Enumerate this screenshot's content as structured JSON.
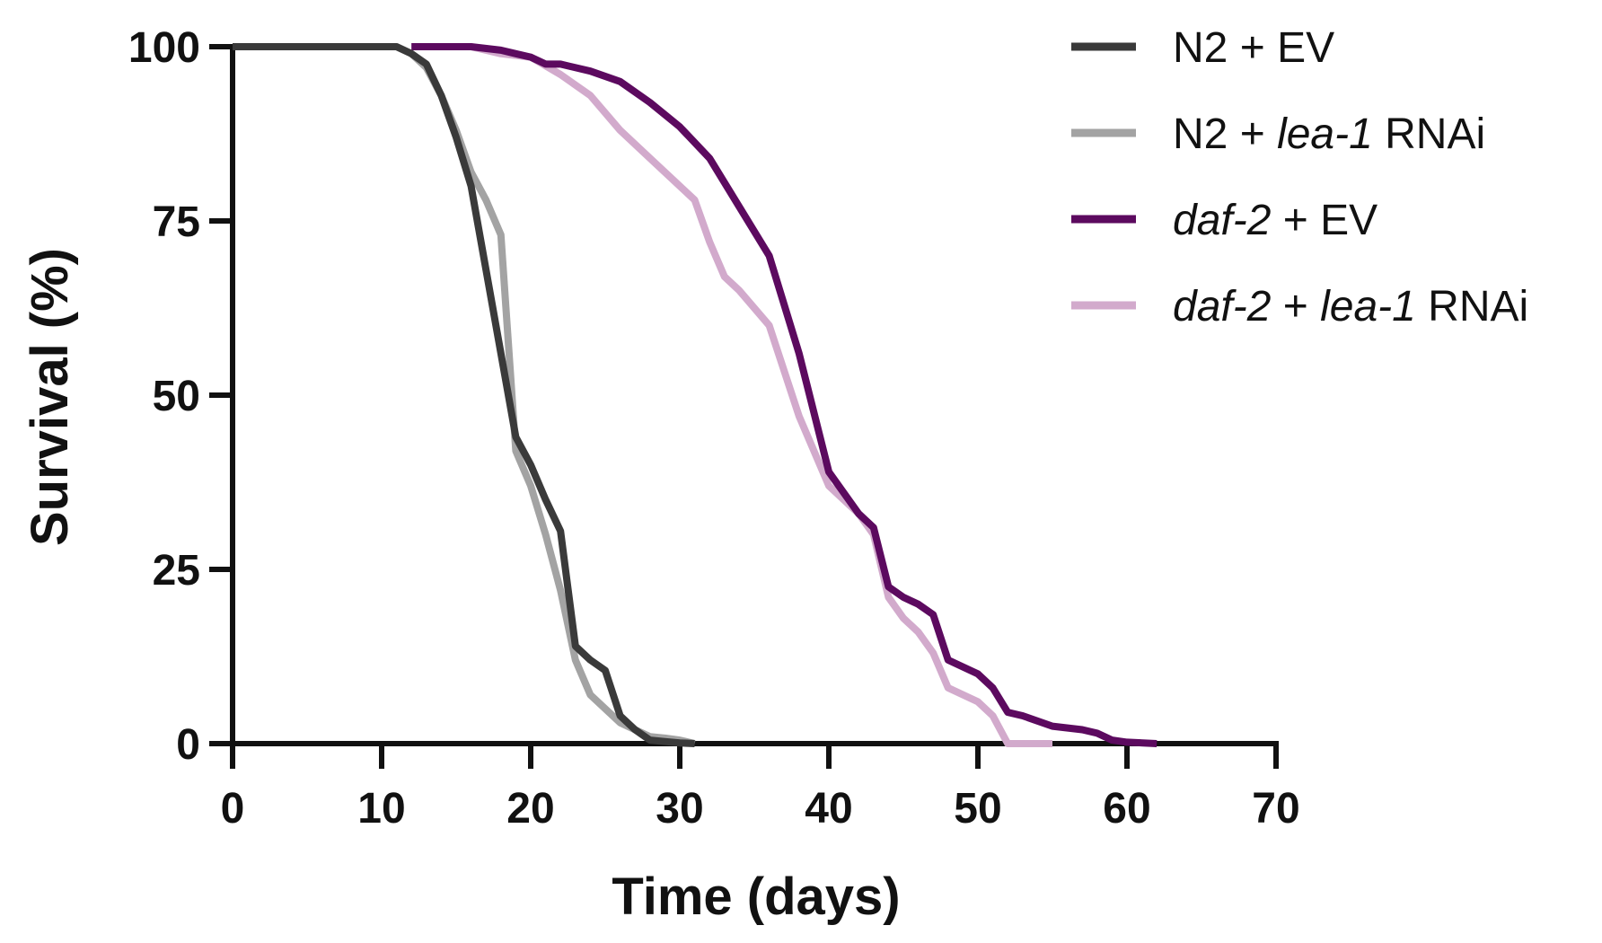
{
  "chart_data": {
    "type": "line",
    "title": "",
    "xlabel": "Time (days)",
    "ylabel": "Survival (%)",
    "xlim": [
      0,
      70
    ],
    "ylim": [
      0,
      100
    ],
    "x_ticks": [
      "0",
      "10",
      "20",
      "30",
      "40",
      "50",
      "60",
      "70"
    ],
    "y_ticks": [
      "0",
      "25",
      "50",
      "75",
      "100"
    ],
    "grid": false,
    "legend_position": "top-right",
    "series": [
      {
        "name": "N2 + EV",
        "legend_parts": [
          {
            "text": "N2 + EV",
            "italic": false
          }
        ],
        "color": "#3a3a3a",
        "points": [
          [
            0,
            100
          ],
          [
            11,
            100
          ],
          [
            12,
            99
          ],
          [
            13,
            97.5
          ],
          [
            14,
            93
          ],
          [
            15,
            87
          ],
          [
            16,
            80
          ],
          [
            17,
            68
          ],
          [
            18,
            56
          ],
          [
            19,
            44
          ],
          [
            20,
            40
          ],
          [
            21,
            35
          ],
          [
            22,
            30.5
          ],
          [
            23,
            14
          ],
          [
            24,
            12
          ],
          [
            25,
            10.5
          ],
          [
            26,
            4
          ],
          [
            27,
            2
          ],
          [
            28,
            0.5
          ],
          [
            29,
            0.3
          ],
          [
            30,
            0.1
          ],
          [
            31,
            0
          ]
        ]
      },
      {
        "name": "N2 + lea-1 RNAi",
        "legend_parts": [
          {
            "text": "N2 + ",
            "italic": false
          },
          {
            "text": "lea-1",
            "italic": true
          },
          {
            "text": " RNAi",
            "italic": false
          }
        ],
        "color": "#a3a3a3",
        "points": [
          [
            0,
            100
          ],
          [
            11,
            100
          ],
          [
            12,
            99
          ],
          [
            13,
            97
          ],
          [
            14,
            93
          ],
          [
            15,
            88
          ],
          [
            16,
            82
          ],
          [
            17,
            78
          ],
          [
            18,
            73
          ],
          [
            19,
            42
          ],
          [
            20,
            37
          ],
          [
            21,
            30
          ],
          [
            22,
            22
          ],
          [
            23,
            12
          ],
          [
            24,
            7
          ],
          [
            25,
            5
          ],
          [
            26,
            3
          ],
          [
            27,
            2
          ],
          [
            28,
            1
          ],
          [
            29,
            0.8
          ],
          [
            30,
            0.5
          ],
          [
            31,
            0
          ]
        ]
      },
      {
        "name": "daf-2 + EV",
        "legend_parts": [
          {
            "text": "daf-2",
            "italic": true
          },
          {
            "text": " + EV",
            "italic": false
          }
        ],
        "color": "#5c0a5f",
        "points": [
          [
            12,
            100
          ],
          [
            16,
            100
          ],
          [
            18,
            99.5
          ],
          [
            19,
            99
          ],
          [
            20,
            98.5
          ],
          [
            21,
            97.5
          ],
          [
            22,
            97.5
          ],
          [
            24,
            96.5
          ],
          [
            26,
            95
          ],
          [
            28,
            92
          ],
          [
            30,
            88.5
          ],
          [
            32,
            84
          ],
          [
            34,
            77
          ],
          [
            36,
            70
          ],
          [
            38,
            56
          ],
          [
            40,
            39
          ],
          [
            42,
            33
          ],
          [
            43,
            31
          ],
          [
            44,
            22.5
          ],
          [
            45,
            21
          ],
          [
            46,
            20
          ],
          [
            47,
            18.5
          ],
          [
            48,
            12
          ],
          [
            49,
            11
          ],
          [
            50,
            10
          ],
          [
            51,
            8
          ],
          [
            52,
            4.5
          ],
          [
            53,
            4
          ],
          [
            55,
            2.5
          ],
          [
            57,
            2
          ],
          [
            58,
            1.5
          ],
          [
            59,
            0.5
          ],
          [
            60,
            0.2
          ],
          [
            62,
            0
          ]
        ]
      },
      {
        "name": "daf-2 + lea-1 RNAi",
        "legend_parts": [
          {
            "text": "daf-2",
            "italic": true
          },
          {
            "text": " + ",
            "italic": false
          },
          {
            "text": "lea-1",
            "italic": true
          },
          {
            "text": " RNAi",
            "italic": false
          }
        ],
        "color": "#d2aacc",
        "points": [
          [
            12,
            100
          ],
          [
            16,
            100
          ],
          [
            18,
            99
          ],
          [
            20,
            98.5
          ],
          [
            22,
            96
          ],
          [
            24,
            93
          ],
          [
            26,
            88
          ],
          [
            28,
            84
          ],
          [
            30,
            80
          ],
          [
            31,
            78
          ],
          [
            32,
            72
          ],
          [
            33,
            67
          ],
          [
            34,
            65
          ],
          [
            36,
            60
          ],
          [
            38,
            47
          ],
          [
            40,
            37
          ],
          [
            42,
            33
          ],
          [
            43,
            30
          ],
          [
            44,
            21
          ],
          [
            45,
            18
          ],
          [
            46,
            16
          ],
          [
            47,
            13
          ],
          [
            48,
            8
          ],
          [
            50,
            6
          ],
          [
            51,
            4
          ],
          [
            52,
            0
          ],
          [
            53,
            0
          ],
          [
            55,
            0
          ]
        ]
      }
    ]
  }
}
